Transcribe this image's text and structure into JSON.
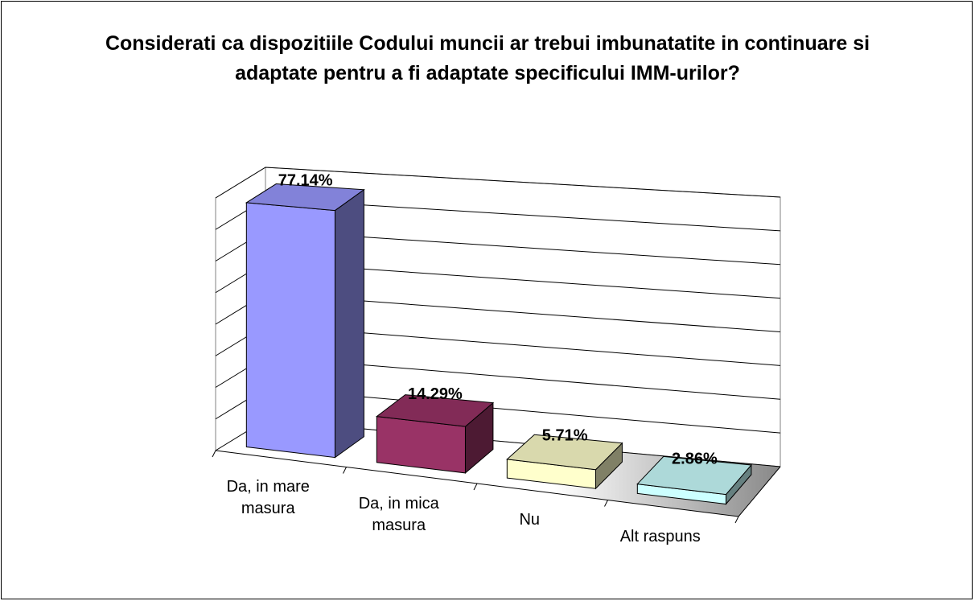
{
  "chart_data": {
    "type": "bar3d",
    "title": "Considerati ca dispozitiile Codului muncii ar trebui imbunatatite in continuare si adaptate pentru a fi adaptate specificului IMM-urilor?",
    "categories": [
      "Da, in mare masura",
      "Da, in mica masura",
      "Nu",
      "Alt raspuns"
    ],
    "values": [
      77.14,
      14.29,
      5.71,
      2.86
    ],
    "value_labels": [
      "77.14%",
      "14.29%",
      "5.71%",
      "2.86%"
    ],
    "colors": [
      "#9999ff",
      "#993366",
      "#ffffcc",
      "#ccffff"
    ],
    "ylim": [
      0,
      80
    ],
    "yticks": [
      0,
      10,
      20,
      30,
      40,
      50,
      60,
      70,
      80
    ],
    "grid": true
  }
}
